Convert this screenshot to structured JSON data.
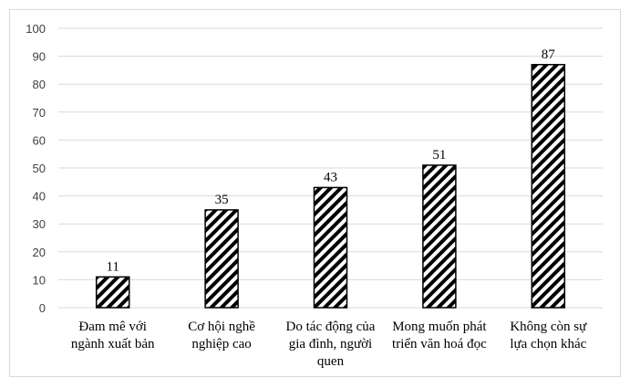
{
  "chart_data": {
    "type": "bar",
    "categories": [
      [
        "Đam mê với",
        "ngành xuất bản"
      ],
      [
        "Cơ hội nghề",
        "nghiệp cao"
      ],
      [
        "Do tác động của",
        "gia đình, người",
        "quen"
      ],
      [
        "Mong muốn phát",
        "triển văn hoá đọc"
      ],
      [
        "Không còn sự",
        "lựa chọn khác"
      ]
    ],
    "values": [
      11,
      35,
      43,
      51,
      87
    ],
    "data_labels": [
      "11",
      "35",
      "43",
      "51",
      "87"
    ],
    "yticks": [
      "0",
      "10",
      "20",
      "30",
      "40",
      "50",
      "60",
      "70",
      "80",
      "90",
      "100"
    ],
    "ylim": [
      0,
      100
    ],
    "title": "",
    "xlabel": "",
    "ylabel": "",
    "grid": true,
    "bar_fill": "diagonal-hatch",
    "colors": {
      "bar_stroke": "#000000",
      "hatch": "#000000",
      "grid": "#d9d9d9",
      "tick_text": "#404040"
    }
  }
}
